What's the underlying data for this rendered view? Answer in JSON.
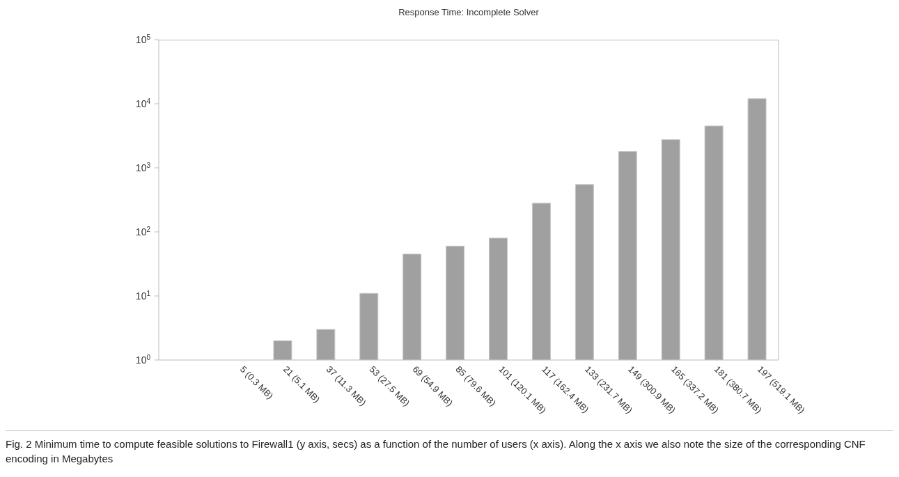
{
  "chart_data": {
    "type": "bar",
    "title": "Response Time: Incomplete Solver",
    "categories": [
      "5 (0.3 MB)",
      "21 (5.1 MB)",
      "37 (11.3 MB)",
      "53 (27.5 MB)",
      "69 (54.9 MB)",
      "85 (79.6 MB)",
      "101 (120.1 MB)",
      "117 (162.4 MB)",
      "133 (231.7 MB)",
      "149 (300.9 MB)",
      "165 (337.2 MB)",
      "181 (380.7 MB)",
      "197 (519.1 MB)"
    ],
    "values": [
      null,
      2,
      3,
      11,
      45,
      60,
      80,
      280,
      550,
      1800,
      2750,
      4500,
      12000
    ],
    "color": "#a0a0a0",
    "log": true,
    "ylim": [
      1,
      100000
    ],
    "yticks": [
      {
        "value": 1,
        "label": "10$^{0}$"
      },
      {
        "value": 10,
        "label": "10$^{1}$"
      },
      {
        "value": 100,
        "label": "10$^{2}$"
      },
      {
        "value": 1000,
        "label": "10$^{3}$"
      },
      {
        "value": 10000,
        "label": "10$^{4}$"
      },
      {
        "value": 100000,
        "label": "10$^{5}$"
      }
    ],
    "grid": false,
    "annotations": [
      "Fig. 2 Minimum time to compute feasible solutions to Firewall1 (y axis, secs) as a function of the number of users (x axis). Along the x axis we also note the size of the corresponding CNF encoding in Megabytes"
    ]
  }
}
